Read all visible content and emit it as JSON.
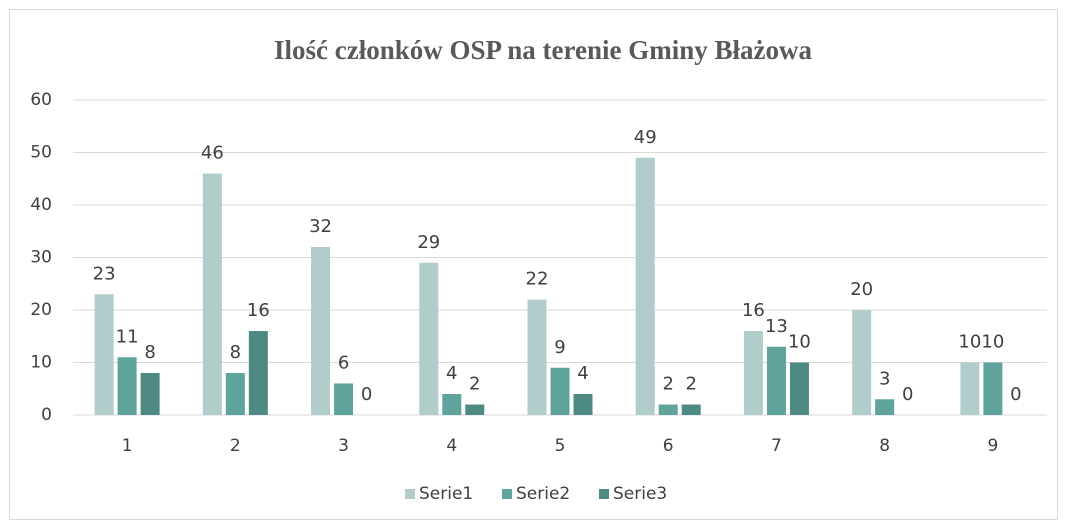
{
  "chart_data": {
    "type": "bar",
    "title": "Ilość członków OSP na terenie Gminy Błażowa",
    "categories": [
      "1",
      "2",
      "3",
      "4",
      "5",
      "6",
      "7",
      "8",
      "9"
    ],
    "series": [
      {
        "name": "Serie1",
        "color": "#b0cccb",
        "values": [
          23,
          46,
          32,
          29,
          22,
          49,
          16,
          20,
          10
        ]
      },
      {
        "name": "Serie2",
        "color": "#5fa39d",
        "values": [
          11,
          8,
          6,
          4,
          9,
          2,
          13,
          3,
          10
        ]
      },
      {
        "name": "Serie3",
        "color": "#4e8a84",
        "values": [
          8,
          16,
          0,
          2,
          4,
          2,
          10,
          0,
          0
        ]
      }
    ],
    "ylim": [
      0,
      60
    ],
    "yticks": [
      0,
      10,
      20,
      30,
      40,
      50,
      60
    ],
    "grid": true,
    "legend": "bottom"
  }
}
